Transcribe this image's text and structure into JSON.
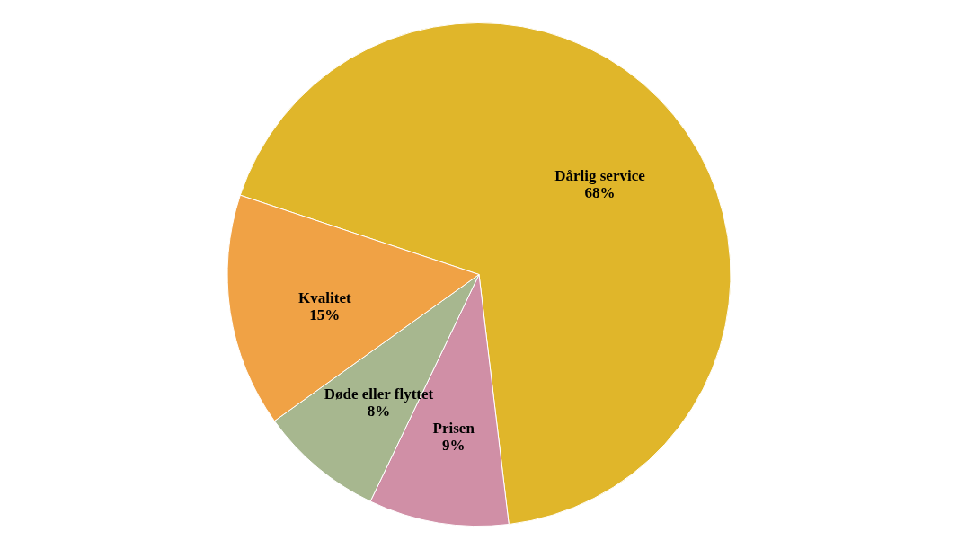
{
  "chart_data": {
    "type": "pie",
    "categories": [
      "Dårlig service",
      "Prisen",
      "Døde eller flyttet",
      "Kvalitet"
    ],
    "values": [
      68,
      9,
      8,
      15
    ],
    "value_labels": [
      "68%",
      "9%",
      "8%",
      "15%"
    ],
    "colors": [
      "#e0b62a",
      "#d08fa6",
      "#a7b78f",
      "#f0a245"
    ]
  }
}
